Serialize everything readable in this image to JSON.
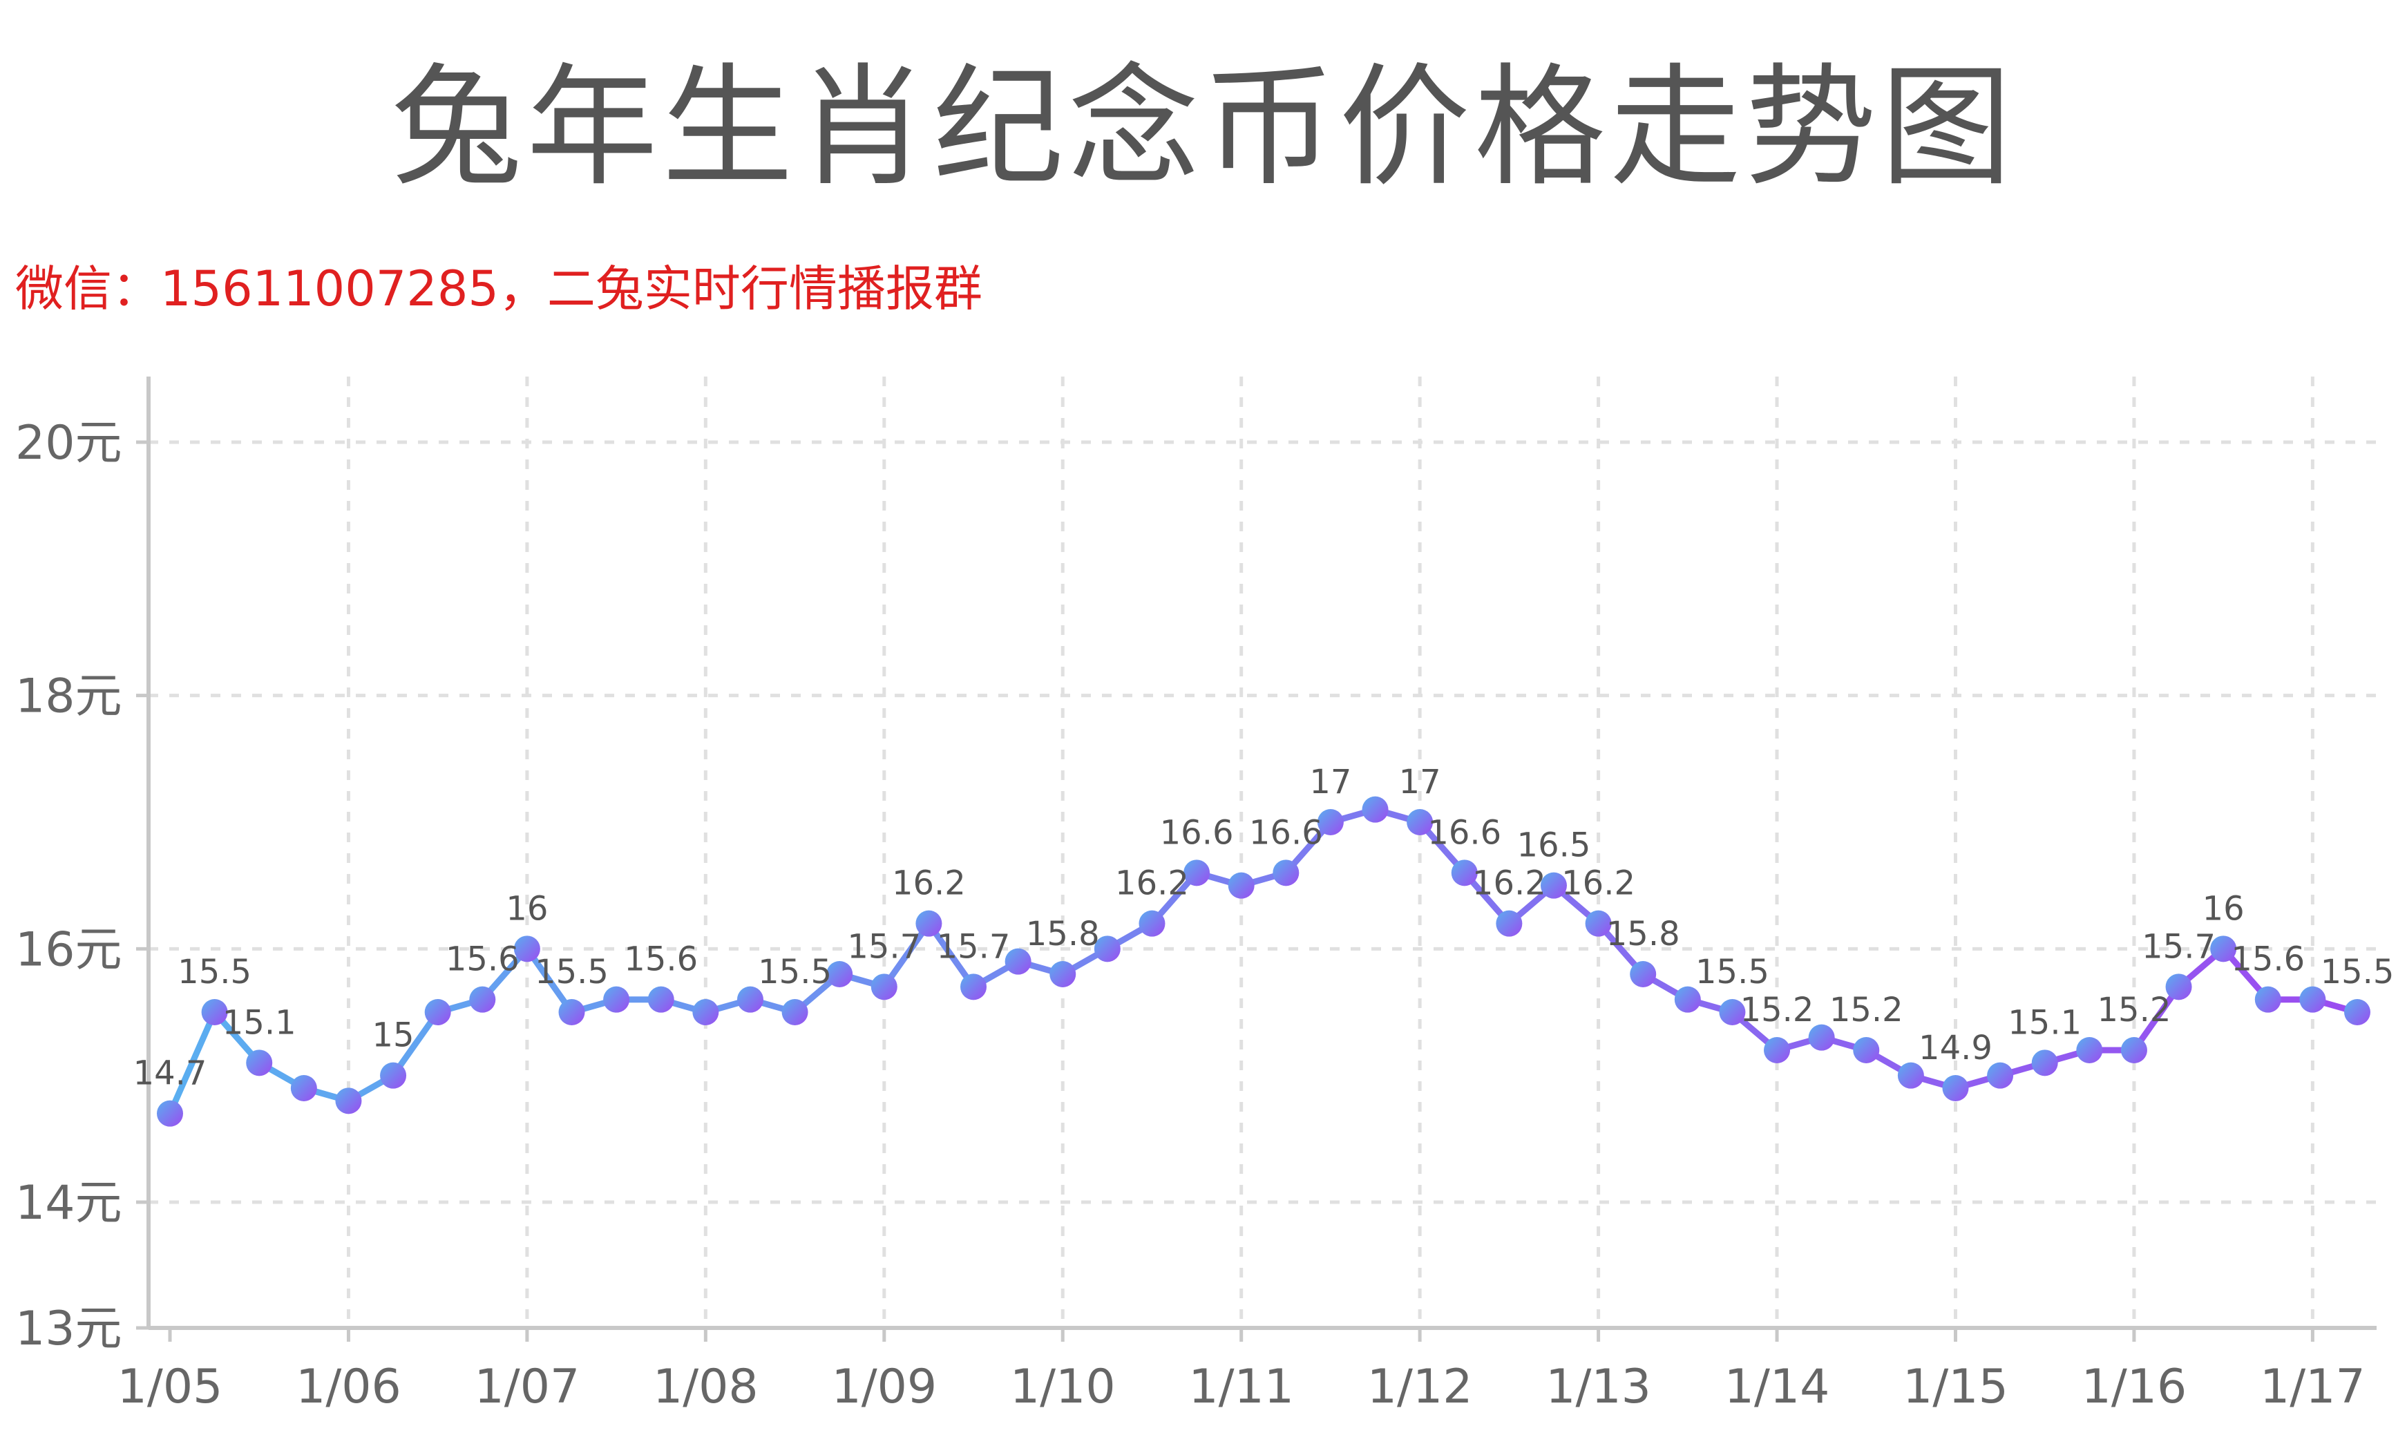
{
  "title": "兔年生肖纪念币价格走势图",
  "subtitle": "微信：15611007285，二兔实时行情播报群",
  "colors": {
    "line_start": "#5aaef0",
    "line_end": "#9b4cf0",
    "grid": "#e0e0e0",
    "axis": "#c8c8c8",
    "subtitle": "#e02020"
  },
  "chart_data": {
    "type": "line",
    "title": "兔年生肖纪念币价格走势图",
    "subtitle": "微信：15611007285，二兔实时行情播报群",
    "xlabel": "",
    "ylabel": "",
    "ylim": [
      13,
      20.5
    ],
    "y_ticks": [
      {
        "value": 13,
        "label": "13元"
      },
      {
        "value": 14,
        "label": "14元"
      },
      {
        "value": 16,
        "label": "16元"
      },
      {
        "value": 18,
        "label": "18元"
      },
      {
        "value": 20,
        "label": "20元"
      }
    ],
    "x_ticks": [
      "1/05",
      "1/06",
      "1/07",
      "1/08",
      "1/09",
      "1/10",
      "1/11",
      "1/12",
      "1/13",
      "1/14",
      "1/15",
      "1/16",
      "1/17"
    ],
    "grid": true,
    "legend": "none",
    "points": [
      {
        "x": "1/05",
        "y": 14.7,
        "label": "14.7"
      },
      {
        "x": "1/05",
        "y": 15.5,
        "label": "15.5"
      },
      {
        "x": "1/05",
        "y": 15.1,
        "label": "15.1"
      },
      {
        "x": "1/05",
        "y": 14.9,
        "label": ""
      },
      {
        "x": "1/06",
        "y": 14.8,
        "label": ""
      },
      {
        "x": "1/06",
        "y": 15.0,
        "label": "15"
      },
      {
        "x": "1/06",
        "y": 15.5,
        "label": ""
      },
      {
        "x": "1/06",
        "y": 15.6,
        "label": "15.6"
      },
      {
        "x": "1/07",
        "y": 16.0,
        "label": "16"
      },
      {
        "x": "1/07",
        "y": 15.5,
        "label": "15.5"
      },
      {
        "x": "1/07",
        "y": 15.6,
        "label": ""
      },
      {
        "x": "1/07",
        "y": 15.6,
        "label": "15.6"
      },
      {
        "x": "1/08",
        "y": 15.5,
        "label": ""
      },
      {
        "x": "1/08",
        "y": 15.6,
        "label": ""
      },
      {
        "x": "1/08",
        "y": 15.5,
        "label": "15.5"
      },
      {
        "x": "1/08",
        "y": 15.8,
        "label": ""
      },
      {
        "x": "1/09",
        "y": 15.7,
        "label": "15.7"
      },
      {
        "x": "1/09",
        "y": 16.2,
        "label": "16.2"
      },
      {
        "x": "1/09",
        "y": 15.7,
        "label": "15.7"
      },
      {
        "x": "1/09",
        "y": 15.9,
        "label": ""
      },
      {
        "x": "1/10",
        "y": 15.8,
        "label": "15.8"
      },
      {
        "x": "1/10",
        "y": 16.0,
        "label": ""
      },
      {
        "x": "1/10",
        "y": 16.2,
        "label": "16.2"
      },
      {
        "x": "1/10",
        "y": 16.6,
        "label": "16.6"
      },
      {
        "x": "1/11",
        "y": 16.5,
        "label": ""
      },
      {
        "x": "1/11",
        "y": 16.6,
        "label": "16.6"
      },
      {
        "x": "1/11",
        "y": 17.0,
        "label": "17"
      },
      {
        "x": "1/11",
        "y": 17.1,
        "label": ""
      },
      {
        "x": "1/12",
        "y": 17.0,
        "label": "17"
      },
      {
        "x": "1/12",
        "y": 16.6,
        "label": "16.6"
      },
      {
        "x": "1/12",
        "y": 16.2,
        "label": "16.2"
      },
      {
        "x": "1/12",
        "y": 16.5,
        "label": "16.5"
      },
      {
        "x": "1/13",
        "y": 16.2,
        "label": "16.2"
      },
      {
        "x": "1/13",
        "y": 15.8,
        "label": "15.8"
      },
      {
        "x": "1/13",
        "y": 15.6,
        "label": ""
      },
      {
        "x": "1/13",
        "y": 15.5,
        "label": "15.5"
      },
      {
        "x": "1/14",
        "y": 15.2,
        "label": "15.2"
      },
      {
        "x": "1/14",
        "y": 15.3,
        "label": ""
      },
      {
        "x": "1/14",
        "y": 15.2,
        "label": "15.2"
      },
      {
        "x": "1/14",
        "y": 15.0,
        "label": ""
      },
      {
        "x": "1/15",
        "y": 14.9,
        "label": "14.9"
      },
      {
        "x": "1/15",
        "y": 15.0,
        "label": ""
      },
      {
        "x": "1/15",
        "y": 15.1,
        "label": "15.1"
      },
      {
        "x": "1/15",
        "y": 15.2,
        "label": ""
      },
      {
        "x": "1/16",
        "y": 15.2,
        "label": "15.2"
      },
      {
        "x": "1/16",
        "y": 15.7,
        "label": "15.7"
      },
      {
        "x": "1/16",
        "y": 16.0,
        "label": "16"
      },
      {
        "x": "1/16",
        "y": 15.6,
        "label": "15.6"
      },
      {
        "x": "1/17",
        "y": 15.6,
        "label": ""
      },
      {
        "x": "1/17",
        "y": 15.5,
        "label": "15.5"
      }
    ]
  }
}
